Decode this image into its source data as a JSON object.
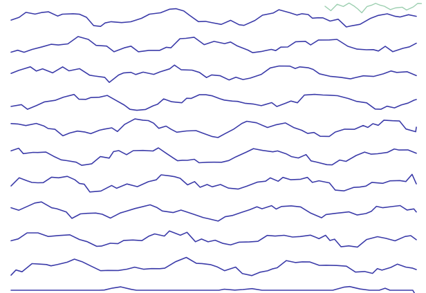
{
  "waves": {
    "count": 11,
    "stroke_color": "#3a3aa8",
    "faint_stroke_color": "#9ccfb0",
    "background_color": "#ffffff"
  }
}
